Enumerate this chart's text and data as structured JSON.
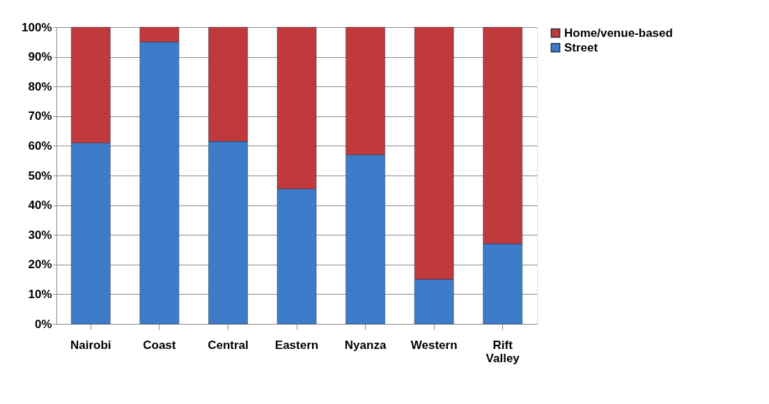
{
  "chart_data": {
    "type": "bar",
    "stacked": true,
    "categories": [
      "Nairobi",
      "Coast",
      "Central",
      "Eastern",
      "Nyanza",
      "Western",
      "Rift Valley"
    ],
    "series": [
      {
        "name": "Street",
        "color": "#3d7cc9",
        "values": [
          61,
          95,
          61.5,
          45.5,
          57,
          15,
          27
        ]
      },
      {
        "name": "Home/venue-based",
        "color": "#c0393b",
        "values": [
          39,
          5,
          38.5,
          54.5,
          43,
          85,
          73
        ]
      }
    ],
    "ylim": [
      0,
      100
    ],
    "yticks": [
      {
        "value": 0,
        "label": "0%"
      },
      {
        "value": 10,
        "label": "10%"
      },
      {
        "value": 20,
        "label": "20%"
      },
      {
        "value": 30,
        "label": "30%"
      },
      {
        "value": 40,
        "label": "40%"
      },
      {
        "value": 50,
        "label": "50%"
      },
      {
        "value": 60,
        "label": "60%"
      },
      {
        "value": 70,
        "label": "70%"
      },
      {
        "value": 80,
        "label": "80%"
      },
      {
        "value": 90,
        "label": "90%"
      },
      {
        "value": 100,
        "label": "100%"
      }
    ],
    "grid": "y",
    "legend": "right"
  }
}
